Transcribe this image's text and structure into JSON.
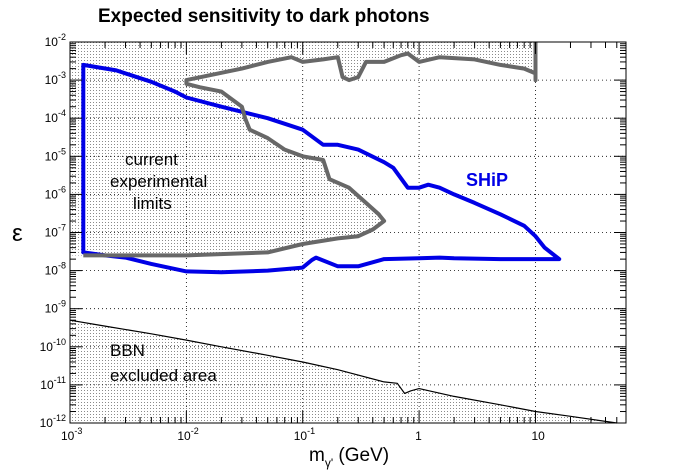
{
  "chart_data": {
    "type": "line",
    "title": "Expected sensitivity to dark photons",
    "xlabel": {
      "base": "m",
      "sub": "γ'",
      "unit": " (GeV)"
    },
    "ylabel": "ε",
    "x_scale": "log",
    "y_scale": "log",
    "xlim": [
      0.001,
      60
    ],
    "ylim": [
      1e-12,
      0.01
    ],
    "grid": true,
    "x_ticks": [
      {
        "value": 0.001,
        "base": "10",
        "exp": "-3"
      },
      {
        "value": 0.01,
        "base": "10",
        "exp": "-2"
      },
      {
        "value": 0.1,
        "base": "10",
        "exp": "-1"
      },
      {
        "value": 1,
        "base": "1",
        "exp": ""
      },
      {
        "value": 10,
        "base": "10",
        "exp": ""
      }
    ],
    "y_ticks": [
      {
        "value": 1e-12,
        "base": "10",
        "exp": "-12"
      },
      {
        "value": 1e-11,
        "base": "10",
        "exp": "-11"
      },
      {
        "value": 1e-10,
        "base": "10",
        "exp": "-10"
      },
      {
        "value": 1e-09,
        "base": "10",
        "exp": "-9"
      },
      {
        "value": 1e-08,
        "base": "10",
        "exp": "-8"
      },
      {
        "value": 1e-07,
        "base": "10",
        "exp": "-7"
      },
      {
        "value": 1e-06,
        "base": "10",
        "exp": "-6"
      },
      {
        "value": 1e-05,
        "base": "10",
        "exp": "-5"
      },
      {
        "value": 0.0001,
        "base": "10",
        "exp": "-4"
      },
      {
        "value": 0.001,
        "base": "10",
        "exp": "-3"
      },
      {
        "value": 0.01,
        "base": "10",
        "exp": "-2"
      }
    ],
    "annotations": {
      "current_limits": [
        "current",
        "experimental",
        "limits"
      ],
      "bbn": [
        "BBN",
        "excluded area"
      ],
      "ship": "SHiP"
    },
    "colors": {
      "ship": "#0000e6",
      "current_limits": "#686868",
      "bbn": "#000000"
    },
    "series": [
      {
        "name": "SHiP",
        "closed": true,
        "points": [
          [
            0.0013,
            0.0025
          ],
          [
            0.0025,
            0.0018
          ],
          [
            0.005,
            0.0009
          ],
          [
            0.008,
            0.0005
          ],
          [
            0.01,
            0.00035
          ],
          [
            0.02,
            0.0002
          ],
          [
            0.05,
            0.0001
          ],
          [
            0.1,
            5e-05
          ],
          [
            0.15,
            2e-05
          ],
          [
            0.2,
            2e-05
          ],
          [
            0.3,
            1.5e-05
          ],
          [
            0.5,
            7e-06
          ],
          [
            0.6,
            5e-06
          ],
          [
            0.8,
            1.5e-06
          ],
          [
            1.0,
            1.5e-06
          ],
          [
            1.2,
            1.8e-06
          ],
          [
            1.5,
            1.5e-06
          ],
          [
            2,
            1e-06
          ],
          [
            3,
            6e-07
          ],
          [
            5,
            3e-07
          ],
          [
            8,
            1.5e-07
          ],
          [
            10,
            8e-08
          ],
          [
            12,
            4e-08
          ],
          [
            16,
            2e-08
          ],
          [
            10,
            2e-08
          ],
          [
            5,
            2e-08
          ],
          [
            2,
            2.1e-08
          ],
          [
            1.5,
            2.2e-08
          ],
          [
            1.0,
            2.1e-08
          ],
          [
            0.5,
            2e-08
          ],
          [
            0.3,
            1.3e-08
          ],
          [
            0.2,
            1.3e-08
          ],
          [
            0.13,
            2.2e-08
          ],
          [
            0.12,
            1.9e-08
          ],
          [
            0.1,
            1.2e-08
          ],
          [
            0.05,
            1e-08
          ],
          [
            0.02,
            9e-09
          ],
          [
            0.01,
            9.5e-09
          ],
          [
            0.005,
            1.5e-08
          ],
          [
            0.003,
            2.2e-08
          ],
          [
            0.002,
            2.5e-08
          ],
          [
            0.0013,
            3e-08
          ]
        ]
      },
      {
        "name": "current experimental limits",
        "closed": false,
        "points": [
          [
            0.0013,
            2.5e-08
          ],
          [
            0.005,
            2.5e-08
          ],
          [
            0.01,
            2.5e-08
          ],
          [
            0.05,
            3e-08
          ],
          [
            0.1,
            5e-08
          ],
          [
            0.2,
            7e-08
          ],
          [
            0.3,
            8e-08
          ],
          [
            0.4,
            1.2e-07
          ],
          [
            0.5,
            2e-07
          ],
          [
            0.45,
            3e-07
          ],
          [
            0.35,
            6e-07
          ],
          [
            0.25,
            1.5e-06
          ],
          [
            0.17,
            2.5e-06
          ],
          [
            0.15,
            8e-06
          ],
          [
            0.1,
            1e-05
          ],
          [
            0.07,
            1.5e-05
          ],
          [
            0.05,
            3e-05
          ],
          [
            0.035,
            5e-05
          ],
          [
            0.032,
            0.0001
          ],
          [
            0.03,
            0.0002
          ],
          [
            0.02,
            0.0005
          ],
          [
            0.013,
            0.00065
          ],
          [
            0.01,
            0.0008
          ],
          [
            0.01,
            0.001
          ],
          [
            0.03,
            0.002
          ],
          [
            0.05,
            0.003
          ],
          [
            0.08,
            0.004
          ],
          [
            0.1,
            0.003
          ],
          [
            0.15,
            0.0035
          ],
          [
            0.2,
            0.004
          ],
          [
            0.22,
            0.0012
          ],
          [
            0.25,
            0.001
          ],
          [
            0.3,
            0.0012
          ],
          [
            0.35,
            0.003
          ],
          [
            0.5,
            0.003
          ],
          [
            0.7,
            0.0045
          ],
          [
            0.8,
            0.005
          ],
          [
            1,
            0.003
          ],
          [
            1.5,
            0.004
          ],
          [
            3,
            0.0035
          ],
          [
            5,
            0.0025
          ],
          [
            8,
            0.002
          ],
          [
            10,
            0.0015
          ],
          [
            10,
            0.001
          ],
          [
            10,
            0.01
          ]
        ]
      },
      {
        "name": "BBN excluded area",
        "closed": false,
        "points": [
          [
            0.001,
            5e-10
          ],
          [
            0.002,
            3.5e-10
          ],
          [
            0.005,
            2.2e-10
          ],
          [
            0.01,
            1.5e-10
          ],
          [
            0.02,
            1e-10
          ],
          [
            0.05,
            6e-11
          ],
          [
            0.1,
            4e-11
          ],
          [
            0.2,
            2.5e-11
          ],
          [
            0.5,
            1.2e-11
          ],
          [
            0.65,
            1.1e-11
          ],
          [
            0.75,
            6e-12
          ],
          [
            0.85,
            7e-12
          ],
          [
            1.0,
            8e-12
          ],
          [
            2,
            5e-12
          ],
          [
            5,
            3e-12
          ],
          [
            10,
            2e-12
          ],
          [
            20,
            1.5e-12
          ],
          [
            50,
            1e-12
          ]
        ]
      }
    ]
  }
}
